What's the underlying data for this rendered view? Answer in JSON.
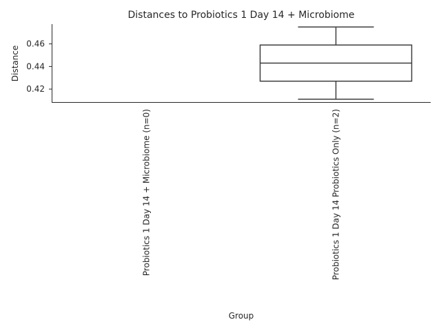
{
  "chart_data": {
    "type": "box",
    "title": "Distances to Probiotics 1 Day 14 + Microbiome",
    "xlabel": "Group",
    "ylabel": "Distance",
    "categories": [
      "Probiotics 1 Day 14 + Microbiome (n=0)",
      "Probiotics 1 Day 14 Probiotics Only (n=2)"
    ],
    "boxes": [
      null,
      {
        "min": 0.411,
        "q1": 0.427,
        "median": 0.443,
        "q3": 0.459,
        "max": 0.475
      }
    ],
    "yticks": [
      0.42,
      0.44,
      0.46
    ],
    "ytick_labels": [
      "0.42",
      "0.44",
      "0.46"
    ],
    "ylim": [
      0.4085,
      0.4775
    ],
    "grid": false,
    "colors": {
      "box_edge": "#3d3d3d",
      "box_fill": "#ffffff",
      "axis": "#262626"
    }
  }
}
